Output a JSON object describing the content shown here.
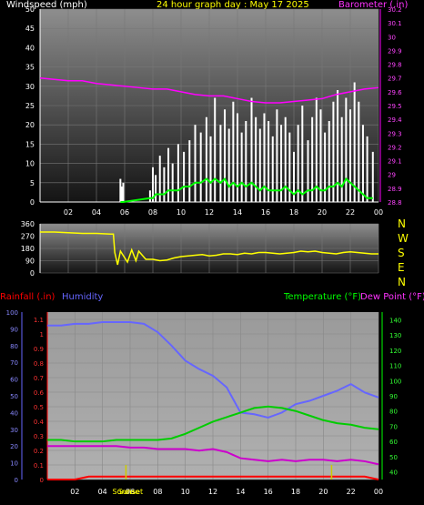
{
  "header": {
    "windspeed_label": "Windspeed (mph)",
    "title": "24 hour graph day : May 17 2025",
    "barometer_label": "Barometer (.in)"
  },
  "panel3_header": {
    "rainfall_label": "Rainfall (.in)",
    "humidity_label": "Humidity",
    "temperature_label": "Temperature (°F)",
    "dewpoint_label": "Dew Point (°F)"
  },
  "annotations": {
    "sunrise": "Sunrise",
    "sunset": "Sunset"
  },
  "compass": [
    "N",
    "W",
    "S",
    "E",
    "N"
  ],
  "colors": {
    "windspeed": "#ffffff",
    "gust": "#ffffff",
    "wind_avg": "#00ff00",
    "barometer": "#ff00ff",
    "direction": "#ffff00",
    "rainfall": "#ff0000",
    "humidity": "#6666ff",
    "temperature": "#00cc00",
    "dewpoint": "#cc00cc",
    "axis_text": "#ffffff",
    "marker": "#cccc00"
  },
  "chart_data": [
    {
      "type": "area",
      "name": "wind_barometer",
      "x_ticks": [
        "02",
        "04",
        "06",
        "08",
        "10",
        "12",
        "14",
        "16",
        "18",
        "20",
        "22",
        "00"
      ],
      "ylim": [
        0,
        50
      ],
      "yticks": [
        0,
        5,
        10,
        15,
        20,
        25,
        30,
        35,
        40,
        45,
        50
      ],
      "y2lim": [
        28.8,
        30.2
      ],
      "y2ticks": [
        "28.8",
        "28.9",
        "29",
        "29.1",
        "29.2",
        "29.3",
        "29.4",
        "29.5",
        "29.6",
        "29.7",
        "29.8",
        "29.9",
        "30",
        "30.1",
        "30.2"
      ],
      "xlim": [
        0,
        24
      ],
      "gust_hours": [
        5.7,
        5.8,
        5.9,
        7.8,
        8.0,
        8.2,
        8.5,
        8.8,
        9.1,
        9.4,
        9.8,
        10.2,
        10.6,
        11.0,
        11.4,
        11.8,
        12.1,
        12.4,
        12.8,
        13.1,
        13.4,
        13.7,
        14.0,
        14.3,
        14.6,
        15.0,
        15.3,
        15.6,
        15.9,
        16.2,
        16.5,
        16.8,
        17.1,
        17.4,
        17.7,
        18.0,
        18.3,
        18.6,
        19.0,
        19.3,
        19.6,
        19.9,
        20.2,
        20.5,
        20.8,
        21.1,
        21.4,
        21.7,
        22.0,
        22.3,
        22.6,
        22.9,
        23.2,
        23.6
      ],
      "gust_values": [
        6,
        4,
        5,
        3,
        9,
        7,
        12,
        9,
        14,
        10,
        15,
        13,
        16,
        20,
        18,
        22,
        17,
        27,
        20,
        24,
        19,
        26,
        23,
        18,
        21,
        27,
        22,
        19,
        23,
        21,
        17,
        24,
        20,
        22,
        18,
        13,
        20,
        25,
        16,
        22,
        27,
        24,
        18,
        21,
        26,
        29,
        22,
        27,
        24,
        31,
        26,
        20,
        17,
        13
      ],
      "wind_avg_values": [
        0,
        0,
        0,
        1,
        1,
        2,
        2,
        2,
        3,
        3,
        3,
        4,
        4,
        5,
        5,
        6,
        5,
        6,
        5,
        6,
        4,
        5,
        4,
        5,
        4,
        5,
        4,
        3,
        4,
        3,
        3,
        3,
        3,
        4,
        3,
        2,
        3,
        2,
        3,
        3,
        4,
        3,
        3,
        4,
        4,
        5,
        4,
        6,
        5,
        4,
        3,
        2,
        1,
        1
      ],
      "barometer_hours": [
        0,
        1,
        2,
        3,
        4,
        5,
        6,
        7,
        8,
        9,
        10,
        11,
        12,
        13,
        14,
        15,
        16,
        17,
        18,
        19,
        20,
        21,
        22,
        23,
        24
      ],
      "barometer_values": [
        29.7,
        29.69,
        29.68,
        29.68,
        29.66,
        29.65,
        29.64,
        29.63,
        29.62,
        29.62,
        29.6,
        29.58,
        29.57,
        29.57,
        29.55,
        29.53,
        29.52,
        29.52,
        29.53,
        29.54,
        29.55,
        29.58,
        29.6,
        29.62,
        29.63
      ]
    },
    {
      "type": "line",
      "name": "wind_direction",
      "x_ticks": [
        "02",
        "04",
        "06",
        "08",
        "10",
        "12",
        "14",
        "16",
        "18",
        "20",
        "22",
        "00"
      ],
      "ylim": [
        0,
        360
      ],
      "yticks": [
        0,
        90,
        180,
        270,
        360
      ],
      "xlim": [
        0,
        24
      ],
      "hours": [
        0,
        1,
        2,
        3,
        4,
        5,
        5.2,
        5.3,
        5.5,
        5.7,
        6.2,
        6.5,
        6.8,
        7.0,
        7.5,
        8.0,
        8.5,
        9,
        9.5,
        10,
        10.5,
        11,
        11.5,
        12,
        12.5,
        13,
        13.5,
        14,
        14.5,
        15,
        15.5,
        16,
        16.5,
        17,
        17.5,
        18,
        18.5,
        19,
        19.5,
        20,
        20.5,
        21,
        21.5,
        22,
        22.5,
        23,
        23.5,
        24
      ],
      "values": [
        300,
        300,
        295,
        290,
        290,
        285,
        285,
        150,
        60,
        160,
        80,
        170,
        90,
        160,
        100,
        100,
        90,
        95,
        110,
        120,
        125,
        130,
        135,
        125,
        130,
        140,
        140,
        135,
        145,
        140,
        150,
        150,
        145,
        140,
        145,
        150,
        160,
        155,
        160,
        150,
        145,
        140,
        150,
        155,
        150,
        145,
        140,
        140
      ]
    },
    {
      "type": "line",
      "name": "rain_humidity_temperature",
      "x_ticks": [
        "02",
        "04",
        "06",
        "08",
        "10",
        "12",
        "14",
        "16",
        "18",
        "20",
        "22",
        "00"
      ],
      "xlim": [
        0,
        24
      ],
      "rain_ticks": [
        "0",
        "0.1",
        "0.2",
        "0.3",
        "0.4",
        "0.5",
        "0.6",
        "0.7",
        "0.8",
        "0.9",
        "1",
        "1.1"
      ],
      "rain_lim": [
        0,
        1.15
      ],
      "humidity_ticks": [
        0,
        10,
        20,
        30,
        40,
        50,
        60,
        70,
        80,
        90,
        100
      ],
      "humidity_lim": [
        0,
        100
      ],
      "temp_ticks": [
        40,
        50,
        60,
        70,
        80,
        90,
        100,
        110,
        120,
        130,
        140
      ],
      "temp_lim": [
        35,
        145
      ],
      "hours": [
        0,
        1,
        2,
        3,
        4,
        5,
        6,
        7,
        8,
        9,
        10,
        11,
        12,
        13,
        14,
        15,
        16,
        17,
        18,
        19,
        20,
        21,
        22,
        23,
        24
      ],
      "rainfall": [
        0,
        0,
        0,
        0.02,
        0.02,
        0.02,
        0.02,
        0.02,
        0.02,
        0.02,
        0.02,
        0.02,
        0.02,
        0.02,
        0.02,
        0.02,
        0.02,
        0.02,
        0.02,
        0.02,
        0.02,
        0.02,
        0.02,
        0.02,
        0
      ],
      "humidity": [
        92,
        92,
        93,
        93,
        94,
        94,
        94,
        93,
        88,
        80,
        71,
        66,
        62,
        55,
        40,
        39,
        37,
        40,
        45,
        47,
        50,
        53,
        57,
        52,
        49
      ],
      "temperature": [
        61,
        61,
        60,
        60,
        60,
        61,
        61,
        61,
        61,
        62,
        65,
        69,
        73,
        76,
        79,
        82,
        83,
        82,
        80,
        77,
        74,
        72,
        71,
        69,
        68
      ],
      "dewpoint": [
        57,
        57,
        57,
        57,
        57,
        57,
        56,
        56,
        55,
        55,
        55,
        54,
        55,
        53,
        49,
        48,
        47,
        48,
        47,
        48,
        48,
        47,
        48,
        47,
        45
      ],
      "sunrise_hour": 5.7,
      "sunset_hour": 20.6
    }
  ]
}
